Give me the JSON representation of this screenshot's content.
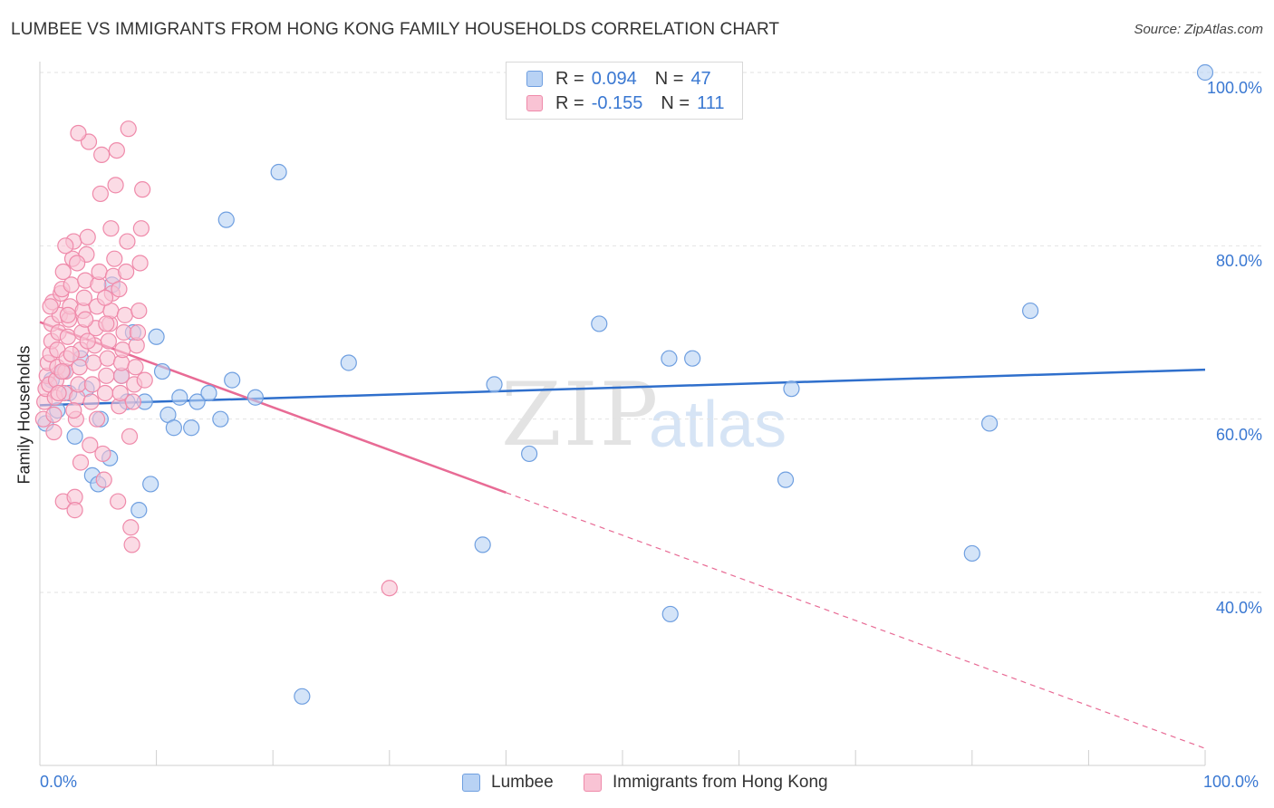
{
  "header": {
    "title": "LUMBEE VS IMMIGRANTS FROM HONG KONG FAMILY HOUSEHOLDS CORRELATION CHART",
    "source": "Source: ZipAtlas.com"
  },
  "watermark": {
    "zip": "ZIP",
    "atlas": "atlas"
  },
  "legend_top": {
    "series1": {
      "r_label": "R =",
      "r_value": "0.094",
      "n_label": "N =",
      "n_value": "47"
    },
    "series2": {
      "r_label": "R =",
      "r_value": "-0.155",
      "n_label": "N =",
      "n_value": "111"
    }
  },
  "colors": {
    "lumbee_fill": "#b8d2f4",
    "lumbee_stroke": "#6f9fe0",
    "lumbee_line": "#2f6fcc",
    "hk_fill": "#f9c3d4",
    "hk_stroke": "#ef8aaa",
    "hk_line": "#e86b95",
    "axis_text": "#3a78d2",
    "grid": "#e2e2e2"
  },
  "chart_data": {
    "type": "scatter",
    "title": "LUMBEE VS IMMIGRANTS FROM HONG KONG FAMILY HOUSEHOLDS CORRELATION CHART",
    "xlabel": "",
    "ylabel": "Family Households",
    "xlim": [
      0,
      100
    ],
    "ylim": [
      20,
      102
    ],
    "x_tick_labels": [
      "0.0%",
      "100.0%"
    ],
    "y_tick_labels": [
      "40.0%",
      "60.0%",
      "80.0%",
      "100.0%"
    ],
    "y_ticks": [
      40,
      60,
      80,
      100
    ],
    "grid": true,
    "legend_position": "top-center",
    "series": [
      {
        "name": "Lumbee",
        "r": 0.094,
        "n": 47,
        "trend": {
          "x0": 0,
          "y0": 61.6,
          "x1": 100,
          "y1": 65.7,
          "dashed_from": null
        },
        "points": [
          [
            0.5,
            59.5
          ],
          [
            1,
            64.5
          ],
          [
            1.5,
            61
          ],
          [
            2,
            65.5
          ],
          [
            2.5,
            63
          ],
          [
            3,
            58
          ],
          [
            3.5,
            67
          ],
          [
            4,
            63.5
          ],
          [
            4.5,
            53.5
          ],
          [
            5,
            52.5
          ],
          [
            5.2,
            60
          ],
          [
            6,
            55.5
          ],
          [
            6.2,
            75.5
          ],
          [
            7,
            65
          ],
          [
            7.5,
            62
          ],
          [
            8,
            70
          ],
          [
            8.5,
            49.5
          ],
          [
            9,
            62
          ],
          [
            9.5,
            52.5
          ],
          [
            10,
            69.5
          ],
          [
            10.5,
            65.5
          ],
          [
            11,
            60.5
          ],
          [
            11.5,
            59
          ],
          [
            12,
            62.5
          ],
          [
            13,
            59
          ],
          [
            13.5,
            62
          ],
          [
            14.5,
            63
          ],
          [
            15.5,
            60
          ],
          [
            16,
            83
          ],
          [
            16.5,
            64.5
          ],
          [
            18.5,
            62.5
          ],
          [
            20.5,
            88.5
          ],
          [
            22.5,
            28
          ],
          [
            26.5,
            66.5
          ],
          [
            38,
            45.5
          ],
          [
            39,
            64
          ],
          [
            42,
            56
          ],
          [
            48,
            71
          ],
          [
            54,
            67
          ],
          [
            54.1,
            37.5
          ],
          [
            56,
            67
          ],
          [
            64,
            53
          ],
          [
            64.5,
            63.5
          ],
          [
            80,
            44.5
          ],
          [
            81.5,
            59.5
          ],
          [
            85,
            72.5
          ],
          [
            100,
            100
          ]
        ]
      },
      {
        "name": "Immigrants from Hong Kong",
        "r": -0.155,
        "n": 111,
        "trend": {
          "x0": 0,
          "y0": 71.2,
          "x1": 100,
          "y1": 22.0,
          "dashed_from": 40
        },
        "points": [
          [
            0.3,
            60
          ],
          [
            0.4,
            62
          ],
          [
            0.5,
            63.5
          ],
          [
            0.6,
            65
          ],
          [
            0.7,
            66.5
          ],
          [
            0.8,
            64
          ],
          [
            0.9,
            67.5
          ],
          [
            1,
            69
          ],
          [
            1,
            71
          ],
          [
            1.1,
            73.5
          ],
          [
            1.2,
            60.5
          ],
          [
            1.3,
            62.5
          ],
          [
            1.4,
            64.5
          ],
          [
            1.5,
            66
          ],
          [
            1.5,
            68
          ],
          [
            1.6,
            70
          ],
          [
            1.7,
            72
          ],
          [
            1.8,
            74.5
          ],
          [
            1.9,
            75
          ],
          [
            2,
            77
          ],
          [
            2,
            50.5
          ],
          [
            2.1,
            63
          ],
          [
            2.2,
            65.5
          ],
          [
            2.3,
            67
          ],
          [
            2.4,
            69.5
          ],
          [
            2.5,
            71.5
          ],
          [
            2.6,
            73
          ],
          [
            2.7,
            75.5
          ],
          [
            2.8,
            78.5
          ],
          [
            2.9,
            80.5
          ],
          [
            3,
            51
          ],
          [
            3,
            49.5
          ],
          [
            3.1,
            60
          ],
          [
            3.2,
            62.5
          ],
          [
            3.3,
            64
          ],
          [
            3.4,
            66
          ],
          [
            3.5,
            68
          ],
          [
            3.6,
            70
          ],
          [
            3.7,
            72.5
          ],
          [
            3.8,
            74
          ],
          [
            3.9,
            76
          ],
          [
            4,
            79
          ],
          [
            4.1,
            81
          ],
          [
            4.2,
            92
          ],
          [
            4.3,
            57
          ],
          [
            4.4,
            62
          ],
          [
            4.5,
            64
          ],
          [
            4.6,
            66.5
          ],
          [
            4.7,
            68.5
          ],
          [
            4.8,
            70.5
          ],
          [
            4.9,
            73
          ],
          [
            5,
            75.5
          ],
          [
            5.1,
            77
          ],
          [
            5.2,
            86
          ],
          [
            5.3,
            90.5
          ],
          [
            5.4,
            56
          ],
          [
            5.5,
            53
          ],
          [
            5.6,
            63
          ],
          [
            5.7,
            65
          ],
          [
            5.8,
            67
          ],
          [
            5.9,
            69
          ],
          [
            6,
            71
          ],
          [
            6.1,
            72.5
          ],
          [
            6.2,
            74.5
          ],
          [
            6.3,
            76.5
          ],
          [
            6.4,
            78.5
          ],
          [
            6.5,
            87
          ],
          [
            6.6,
            91
          ],
          [
            6.7,
            50.5
          ],
          [
            6.8,
            61.5
          ],
          [
            6.9,
            63
          ],
          [
            7,
            65
          ],
          [
            7,
            66.5
          ],
          [
            7.1,
            68
          ],
          [
            7.2,
            70
          ],
          [
            7.3,
            72
          ],
          [
            7.4,
            77
          ],
          [
            7.5,
            80.5
          ],
          [
            7.6,
            93.5
          ],
          [
            7.7,
            58
          ],
          [
            7.8,
            47.5
          ],
          [
            7.9,
            45.5
          ],
          [
            8,
            62
          ],
          [
            8.1,
            64
          ],
          [
            8.2,
            66
          ],
          [
            8.3,
            68.5
          ],
          [
            8.4,
            70
          ],
          [
            8.5,
            72.5
          ],
          [
            8.6,
            78
          ],
          [
            8.7,
            82
          ],
          [
            8.8,
            86.5
          ],
          [
            9,
            64.5
          ],
          [
            3.3,
            93
          ],
          [
            2.4,
            72
          ],
          [
            1.6,
            63
          ],
          [
            2.9,
            61
          ],
          [
            4.1,
            69
          ],
          [
            5.7,
            71
          ],
          [
            6.8,
            75
          ],
          [
            2.2,
            80
          ],
          [
            1.2,
            58.5
          ],
          [
            3.5,
            55
          ],
          [
            4.9,
            60
          ],
          [
            1.9,
            65.5
          ],
          [
            2.7,
            67.5
          ],
          [
            3.9,
            71.5
          ],
          [
            5.6,
            74
          ],
          [
            6.1,
            82
          ],
          [
            0.9,
            73
          ],
          [
            3.2,
            78
          ],
          [
            30,
            40.5
          ]
        ]
      }
    ]
  },
  "bottom_legend": {
    "item1": "Lumbee",
    "item2": "Immigrants from Hong Kong"
  }
}
